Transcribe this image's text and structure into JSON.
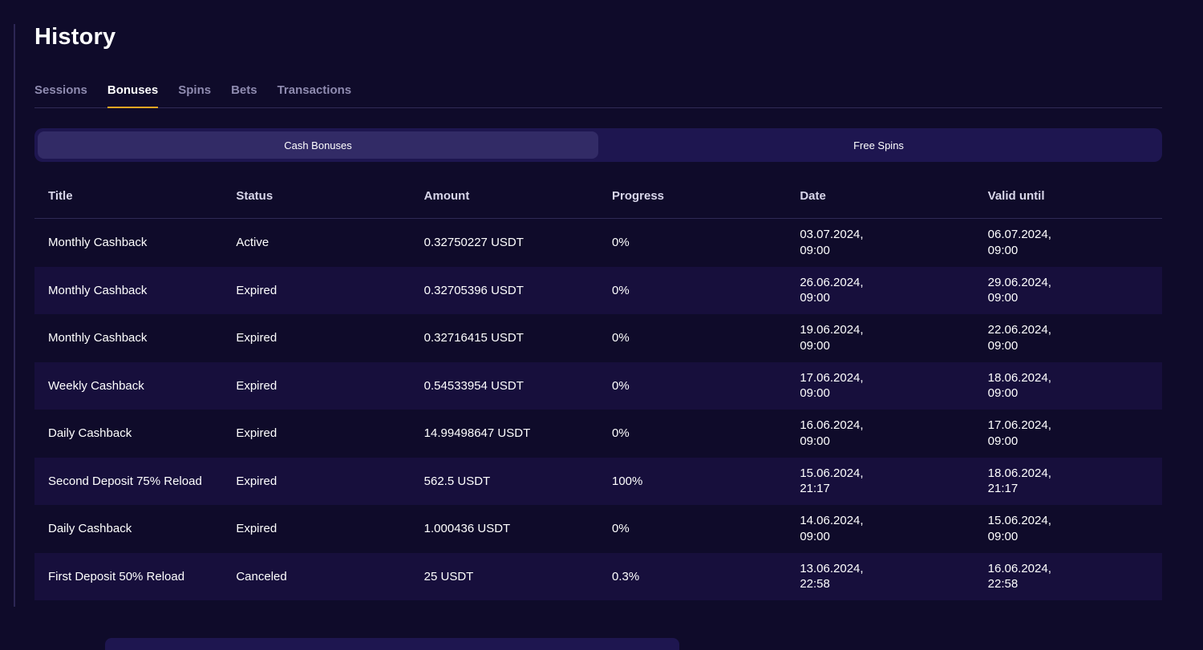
{
  "page": {
    "title": "History"
  },
  "tabs": [
    {
      "label": "Sessions",
      "active": false
    },
    {
      "label": "Bonuses",
      "active": true
    },
    {
      "label": "Spins",
      "active": false
    },
    {
      "label": "Bets",
      "active": false
    },
    {
      "label": "Transactions",
      "active": false
    }
  ],
  "segments": [
    {
      "label": "Cash Bonuses",
      "active": true
    },
    {
      "label": "Free Spins",
      "active": false
    }
  ],
  "table": {
    "headers": [
      "Title",
      "Status",
      "Amount",
      "Progress",
      "Date",
      "Valid until"
    ],
    "rows": [
      {
        "title": "Monthly Cashback",
        "status": "Active",
        "amount": "0.32750227 USDT",
        "progress": "0%",
        "date_d": "03.07.2024,",
        "date_t": "09:00",
        "valid_d": "06.07.2024,",
        "valid_t": "09:00"
      },
      {
        "title": "Monthly Cashback",
        "status": "Expired",
        "amount": "0.32705396 USDT",
        "progress": "0%",
        "date_d": "26.06.2024,",
        "date_t": "09:00",
        "valid_d": "29.06.2024,",
        "valid_t": "09:00"
      },
      {
        "title": "Monthly Cashback",
        "status": "Expired",
        "amount": "0.32716415 USDT",
        "progress": "0%",
        "date_d": "19.06.2024,",
        "date_t": "09:00",
        "valid_d": "22.06.2024,",
        "valid_t": "09:00"
      },
      {
        "title": "Weekly Cashback",
        "status": "Expired",
        "amount": "0.54533954 USDT",
        "progress": "0%",
        "date_d": "17.06.2024,",
        "date_t": "09:00",
        "valid_d": "18.06.2024,",
        "valid_t": "09:00"
      },
      {
        "title": "Daily Cashback",
        "status": "Expired",
        "amount": "14.99498647 USDT",
        "progress": "0%",
        "date_d": "16.06.2024,",
        "date_t": "09:00",
        "valid_d": "17.06.2024,",
        "valid_t": "09:00"
      },
      {
        "title": "Second Deposit 75% Reload",
        "status": "Expired",
        "amount": "562.5 USDT",
        "progress": "100%",
        "date_d": "15.06.2024,",
        "date_t": "21:17",
        "valid_d": "18.06.2024,",
        "valid_t": "21:17"
      },
      {
        "title": "Daily Cashback",
        "status": "Expired",
        "amount": "1.000436 USDT",
        "progress": "0%",
        "date_d": "14.06.2024,",
        "date_t": "09:00",
        "valid_d": "15.06.2024,",
        "valid_t": "09:00"
      },
      {
        "title": "First Deposit 50% Reload",
        "status": "Canceled",
        "amount": "25 USDT",
        "progress": "0.3%",
        "date_d": "13.06.2024,",
        "date_t": "22:58",
        "valid_d": "16.06.2024,",
        "valid_t": "22:58"
      }
    ]
  },
  "colors": {
    "background": "#0f0b2a",
    "accent": "#f5a623",
    "segment_bg": "#1e1650",
    "segment_active": "#322b66",
    "row_alt": "#170f3c"
  }
}
